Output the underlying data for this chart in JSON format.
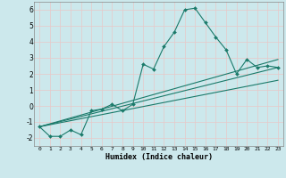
{
  "xlabel": "Humidex (Indice chaleur)",
  "ylabel": "",
  "bg_color": "#cce8ec",
  "grid_color": "#b0d4d8",
  "line_color": "#1a7a6a",
  "xlim": [
    -0.5,
    23.5
  ],
  "ylim": [
    -2.5,
    6.5
  ],
  "yticks": [
    -2,
    -1,
    0,
    1,
    2,
    3,
    4,
    5,
    6
  ],
  "xticks": [
    0,
    1,
    2,
    3,
    4,
    5,
    6,
    7,
    8,
    9,
    10,
    11,
    12,
    13,
    14,
    15,
    16,
    17,
    18,
    19,
    20,
    21,
    22,
    23
  ],
  "series1_x": [
    0,
    1,
    2,
    3,
    4,
    5,
    6,
    7,
    8,
    9,
    10,
    11,
    12,
    13,
    14,
    15,
    16,
    17,
    18,
    19,
    20,
    21,
    22,
    23
  ],
  "series1_y": [
    -1.3,
    -1.9,
    -1.9,
    -1.5,
    -1.8,
    -0.3,
    -0.2,
    0.1,
    -0.3,
    0.1,
    2.6,
    2.3,
    3.7,
    4.6,
    6.0,
    6.1,
    5.2,
    4.3,
    3.5,
    2.0,
    2.9,
    2.4,
    2.5,
    2.4
  ],
  "series2_x": [
    0,
    23
  ],
  "series2_y": [
    -1.3,
    2.4
  ],
  "series3_x": [
    0,
    23
  ],
  "series3_y": [
    -1.3,
    1.6
  ],
  "series4_x": [
    0,
    23
  ],
  "series4_y": [
    -1.3,
    2.9
  ]
}
